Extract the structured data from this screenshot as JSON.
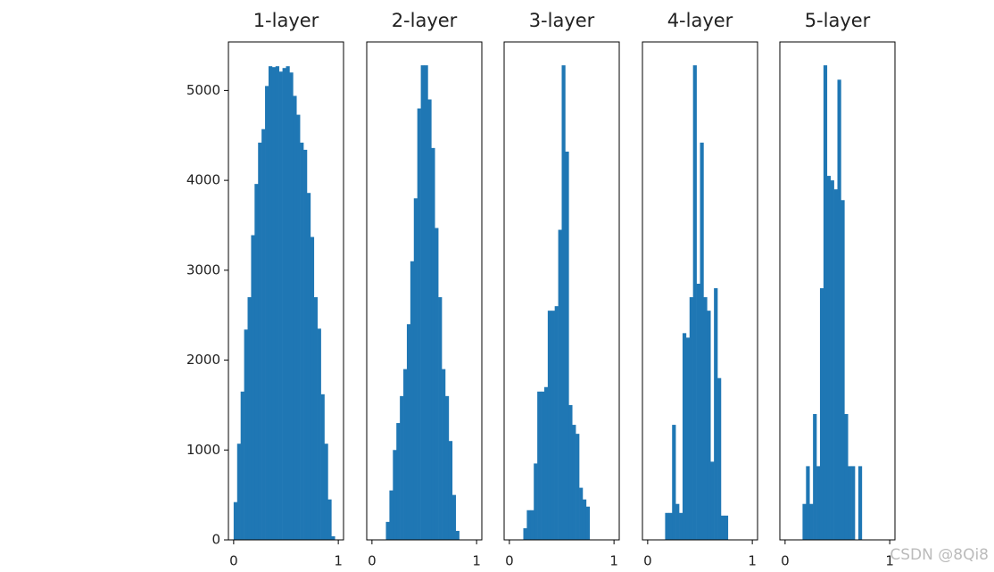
{
  "chart_data": [
    {
      "type": "histogram",
      "title": "1-layer",
      "color": "#1f77b4",
      "bins": [
        0,
        0.0333,
        0.0667,
        0.1,
        0.1333,
        0.1667,
        0.2,
        0.2333,
        0.2667,
        0.3,
        0.3333,
        0.3667,
        0.4,
        0.4333,
        0.4667,
        0.5,
        0.5333,
        0.5667,
        0.6,
        0.6333,
        0.6667,
        0.7,
        0.7333,
        0.7667,
        0.8,
        0.8333,
        0.8667,
        0.9,
        0.9333,
        0.9667,
        1
      ],
      "values": [
        420,
        1070,
        1650,
        2340,
        2700,
        3390,
        3960,
        4420,
        4570,
        5050,
        5270,
        5260,
        5270,
        5210,
        5250,
        5270,
        5200,
        4940,
        4730,
        4420,
        4340,
        3860,
        3370,
        2700,
        2350,
        1620,
        1070,
        450,
        40,
        0
      ],
      "xlim": [
        -0.05,
        1.05
      ],
      "xticks": [
        0,
        1
      ],
      "ylim": [
        0,
        5540
      ],
      "yticks": [
        0,
        1000,
        2000,
        3000,
        4000,
        5000
      ]
    },
    {
      "type": "histogram",
      "title": "2-layer",
      "color": "#1f77b4",
      "bins": [
        0,
        0.0333,
        0.0667,
        0.1,
        0.1333,
        0.1667,
        0.2,
        0.2333,
        0.2667,
        0.3,
        0.3333,
        0.3667,
        0.4,
        0.4333,
        0.4667,
        0.5,
        0.5333,
        0.5667,
        0.6,
        0.6333,
        0.6667,
        0.7,
        0.7333,
        0.7667,
        0.8,
        0.8333,
        0.8667,
        0.9,
        0.9333,
        0.9667,
        1
      ],
      "values": [
        0,
        0,
        0,
        0,
        200,
        550,
        1000,
        1300,
        1600,
        1900,
        2400,
        3100,
        3800,
        4800,
        5280,
        5280,
        4900,
        4360,
        3470,
        2700,
        1900,
        1600,
        1100,
        500,
        100,
        0,
        0,
        0,
        0,
        0
      ],
      "xlim": [
        -0.05,
        1.05
      ],
      "xticks": [
        0,
        1
      ],
      "ylim": [
        0,
        5540
      ]
    },
    {
      "type": "histogram",
      "title": "3-layer",
      "color": "#1f77b4",
      "bins": [
        0,
        0.0333,
        0.0667,
        0.1,
        0.1333,
        0.1667,
        0.2,
        0.2333,
        0.2667,
        0.3,
        0.3333,
        0.3667,
        0.4,
        0.4333,
        0.4667,
        0.5,
        0.5333,
        0.5667,
        0.6,
        0.6333,
        0.6667,
        0.7,
        0.7333,
        0.7667,
        0.8,
        0.8333,
        0.8667,
        0.9,
        0.9333,
        0.9667,
        1
      ],
      "values": [
        0,
        0,
        0,
        0,
        130,
        330,
        330,
        850,
        1650,
        1650,
        1700,
        2550,
        2550,
        2600,
        3450,
        5280,
        4320,
        1500,
        1280,
        1180,
        580,
        450,
        370,
        0,
        0,
        0,
        0,
        0,
        0,
        0
      ],
      "xlim": [
        -0.05,
        1.05
      ],
      "xticks": [
        0,
        1
      ],
      "ylim": [
        0,
        5540
      ]
    },
    {
      "type": "histogram",
      "title": "4-layer",
      "color": "#1f77b4",
      "bins": [
        0,
        0.0333,
        0.0667,
        0.1,
        0.1333,
        0.1667,
        0.2,
        0.2333,
        0.2667,
        0.3,
        0.3333,
        0.3667,
        0.4,
        0.4333,
        0.4667,
        0.5,
        0.5333,
        0.5667,
        0.6,
        0.6333,
        0.6667,
        0.7,
        0.7333,
        0.7667,
        0.8,
        0.8333,
        0.8667,
        0.9,
        0.9333,
        0.9667,
        1
      ],
      "values": [
        0,
        0,
        0,
        0,
        0,
        300,
        300,
        1280,
        400,
        300,
        2300,
        2250,
        2700,
        5280,
        2850,
        4420,
        2700,
        2550,
        870,
        2800,
        1800,
        270,
        270,
        0,
        0,
        0,
        0,
        0,
        0,
        0
      ],
      "xlim": [
        -0.05,
        1.05
      ],
      "xticks": [
        0,
        1
      ],
      "ylim": [
        0,
        5540
      ]
    },
    {
      "type": "histogram",
      "title": "5-layer",
      "color": "#1f77b4",
      "bins": [
        0,
        0.0333,
        0.0667,
        0.1,
        0.1333,
        0.1667,
        0.2,
        0.2333,
        0.2667,
        0.3,
        0.3333,
        0.3667,
        0.4,
        0.4333,
        0.4667,
        0.5,
        0.5333,
        0.5667,
        0.6,
        0.6333,
        0.6667,
        0.7,
        0.7333,
        0.7667,
        0.8,
        0.8333,
        0.8667,
        0.9,
        0.9333,
        0.9667,
        1
      ],
      "values": [
        0,
        0,
        0,
        0,
        0,
        400,
        820,
        400,
        1400,
        820,
        2800,
        5280,
        4050,
        4000,
        3900,
        5120,
        3780,
        1400,
        820,
        820,
        0,
        820,
        0,
        0,
        0,
        0,
        0,
        0,
        0,
        0
      ],
      "xlim": [
        -0.05,
        1.05
      ],
      "xticks": [
        0,
        1
      ],
      "ylim": [
        0,
        5540
      ]
    }
  ],
  "watermark": "CSDN @8Qi8"
}
